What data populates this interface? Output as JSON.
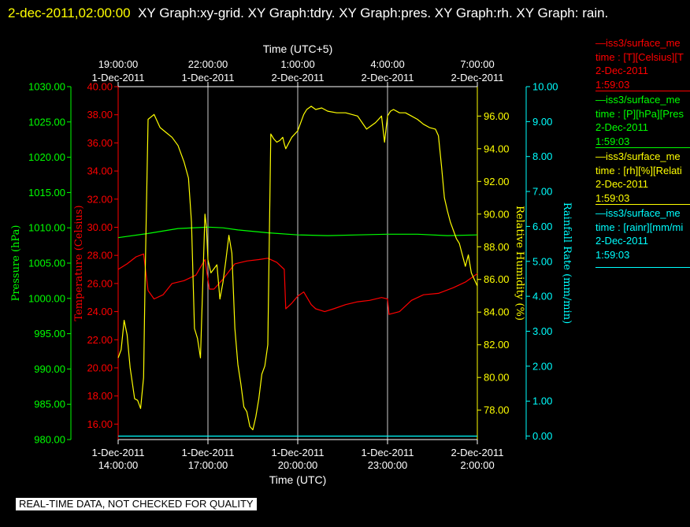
{
  "header": {
    "datetime": "2-dec-2011,02:00:00",
    "graphs": "XY Graph:xy-grid.  XY Graph:tdry.  XY Graph:pres.  XY Graph:rh.  XY Graph: rain."
  },
  "legend": [
    {
      "line1": "—iss3/surface_me",
      "line2": "time : [T][Celsius][T",
      "line3": "2-Dec-2011",
      "line4": "1:59:03",
      "color": "#ff0000"
    },
    {
      "line1": "—iss3/surface_me",
      "line2": "time : [P][hPa][Pres",
      "line3": "2-Dec-2011",
      "line4": "1:59:03",
      "color": "#00ff00"
    },
    {
      "line1": "—iss3/surface_me",
      "line2": "time : [rh][%][Relati",
      "line3": "2-Dec-2011",
      "line4": "1:59:03",
      "color": "#ffff00"
    },
    {
      "line1": "—iss3/surface_me",
      "line2": "time : [rainr][mm/mi",
      "line3": "2-Dec-2011",
      "line4": "1:59:03",
      "color": "#00ffff"
    }
  ],
  "footer_note": "REAL-TIME DATA, NOT CHECKED FOR QUALITY",
  "chart_data": {
    "type": "line",
    "xlabel_bottom": "Time (UTC)",
    "xlabel_top": "Time (UTC+5)",
    "xlim": [
      14,
      26
    ],
    "x_ticks_bottom": [
      {
        "x": 14,
        "l1": "1-Dec-2011",
        "l2": "14:00:00"
      },
      {
        "x": 17,
        "l1": "1-Dec-2011",
        "l2": "17:00:00"
      },
      {
        "x": 20,
        "l1": "1-Dec-2011",
        "l2": "20:00:00"
      },
      {
        "x": 23,
        "l1": "1-Dec-2011",
        "l2": "23:00:00"
      },
      {
        "x": 26,
        "l1": "2-Dec-2011",
        "l2": "2:00:00"
      }
    ],
    "x_ticks_top": [
      {
        "x": 14,
        "l1": "19:00:00",
        "l2": "1-Dec-2011"
      },
      {
        "x": 17,
        "l1": "22:00:00",
        "l2": "1-Dec-2011"
      },
      {
        "x": 20,
        "l1": "1:00:00",
        "l2": "2-Dec-2011"
      },
      {
        "x": 23,
        "l1": "4:00:00",
        "l2": "2-Dec-2011"
      },
      {
        "x": 26,
        "l1": "7:00:00",
        "l2": "2-Dec-2011"
      }
    ],
    "axes": [
      {
        "key": "pres",
        "label": "Pressure (hPa)",
        "color": "#00ff00",
        "range": [
          980,
          1030
        ],
        "ticks": [
          "980.00",
          "985.00",
          "990.00",
          "995.00",
          "1000.00",
          "1005.00",
          "1010.00",
          "1015.00",
          "1020.00",
          "1025.00",
          "1030.00"
        ]
      },
      {
        "key": "tdry",
        "label": "Temperature (Celsius)",
        "color": "#ff0000",
        "range": [
          14.9,
          40
        ],
        "ticks": [
          "16.00",
          "18.00",
          "20.00",
          "22.00",
          "24.00",
          "26.00",
          "28.00",
          "30.00",
          "32.00",
          "34.00",
          "36.00",
          "38.00",
          "40.00"
        ]
      },
      {
        "key": "rh",
        "label": "Relative Humidity (%)",
        "color": "#ffff00",
        "range": [
          76.2,
          97.8
        ],
        "ticks": [
          "78.00",
          "80.00",
          "82.00",
          "84.00",
          "86.00",
          "88.00",
          "90.00",
          "92.00",
          "94.00",
          "96.00"
        ]
      },
      {
        "key": "rain",
        "label": "Rainfall Rate (mm/min)",
        "color": "#00ffff",
        "range": [
          -0.1,
          10
        ],
        "ticks": [
          "0.00",
          "1.00",
          "2.00",
          "3.00",
          "4.00",
          "5.00",
          "6.00",
          "7.00",
          "8.00",
          "9.00",
          "10.00"
        ]
      }
    ],
    "series": [
      {
        "name": "tdry",
        "axis": "tdry",
        "color": "#ff0000",
        "x": [
          14.0,
          14.3,
          14.6,
          14.85,
          15.0,
          15.2,
          15.5,
          15.8,
          16.2,
          16.6,
          16.9,
          17.05,
          17.2,
          17.5,
          17.9,
          18.3,
          18.7,
          19.0,
          19.3,
          19.55,
          19.6,
          19.8,
          20.0,
          20.2,
          20.45,
          20.6,
          20.9,
          21.2,
          21.6,
          22.0,
          22.4,
          22.8,
          23.0,
          23.05,
          23.4,
          23.8,
          24.2,
          24.7,
          25.2,
          25.6,
          26.0
        ],
        "y": [
          27.0,
          27.4,
          27.9,
          28.1,
          25.5,
          24.9,
          25.2,
          26.0,
          26.2,
          26.6,
          27.7,
          25.6,
          25.6,
          26.3,
          27.4,
          27.6,
          27.7,
          27.8,
          27.5,
          27.0,
          24.2,
          24.6,
          25.1,
          25.4,
          24.5,
          24.2,
          24.0,
          24.2,
          24.5,
          24.7,
          24.8,
          25.0,
          24.9,
          23.8,
          24.0,
          24.8,
          25.2,
          25.3,
          25.7,
          26.1,
          26.7
        ]
      },
      {
        "name": "pres",
        "axis": "pres",
        "color": "#00ff00",
        "x": [
          14.0,
          15.0,
          16.0,
          17.0,
          17.5,
          18.0,
          19.0,
          20.0,
          21.0,
          22.0,
          23.0,
          24.0,
          25.0,
          26.0
        ],
        "y": [
          1008.6,
          1009.2,
          1009.9,
          1010.1,
          1010.0,
          1009.7,
          1009.3,
          1009.0,
          1008.9,
          1009.0,
          1009.1,
          1009.1,
          1008.9,
          1009.0
        ]
      },
      {
        "name": "rh",
        "axis": "rh",
        "color": "#ffff00",
        "x": [
          14.0,
          14.1,
          14.2,
          14.3,
          14.4,
          14.55,
          14.65,
          14.75,
          14.85,
          14.9,
          15.0,
          15.2,
          15.4,
          15.6,
          15.8,
          16.0,
          16.2,
          16.35,
          16.45,
          16.55,
          16.65,
          16.75,
          16.9,
          16.95,
          17.0,
          17.1,
          17.3,
          17.4,
          17.5,
          17.6,
          17.7,
          17.8,
          17.9,
          18.0,
          18.1,
          18.2,
          18.3,
          18.4,
          18.5,
          18.6,
          18.7,
          18.8,
          18.9,
          19.0,
          19.1,
          19.2,
          19.3,
          19.4,
          19.5,
          19.55,
          19.6,
          19.8,
          20.0,
          20.2,
          20.3,
          20.45,
          20.6,
          20.8,
          21.0,
          21.3,
          21.6,
          22.0,
          22.3,
          22.6,
          22.8,
          22.9,
          23.0,
          23.1,
          23.2,
          23.4,
          23.6,
          23.8,
          24.0,
          24.2,
          24.4,
          24.6,
          24.7,
          24.8,
          24.9,
          25.0,
          25.1,
          25.2,
          25.3,
          25.4,
          25.5,
          25.6,
          25.7,
          25.8,
          25.9,
          26.0
        ],
        "y": [
          81.2,
          81.7,
          83.5,
          82.6,
          80.6,
          78.7,
          78.6,
          78.1,
          80.0,
          86.0,
          95.8,
          96.1,
          95.3,
          95.0,
          94.7,
          94.2,
          93.2,
          92.2,
          89.5,
          83.0,
          82.4,
          81.2,
          90.0,
          89.2,
          87.2,
          86.4,
          86.9,
          84.8,
          85.8,
          87.2,
          88.7,
          87.6,
          83.0,
          80.8,
          79.6,
          78.2,
          77.9,
          77.0,
          76.8,
          77.6,
          78.7,
          80.2,
          80.7,
          82.0,
          94.9,
          94.6,
          94.4,
          94.5,
          94.7,
          94.3,
          94.0,
          94.7,
          95.1,
          96.1,
          96.4,
          96.6,
          96.4,
          96.5,
          96.3,
          96.2,
          96.2,
          96.0,
          95.2,
          95.6,
          96.0,
          94.4,
          96.0,
          96.3,
          96.4,
          96.2,
          96.2,
          96.0,
          95.8,
          95.5,
          95.3,
          95.2,
          94.8,
          93.0,
          91.0,
          90.2,
          89.5,
          89.0,
          88.5,
          88.2,
          87.5,
          86.8,
          87.5,
          86.4,
          86.0,
          85.6
        ]
      },
      {
        "name": "rain",
        "axis": "rain",
        "color": "#00ffff",
        "x": [
          14.0,
          26.0
        ],
        "y": [
          0.0,
          0.0
        ]
      }
    ]
  }
}
